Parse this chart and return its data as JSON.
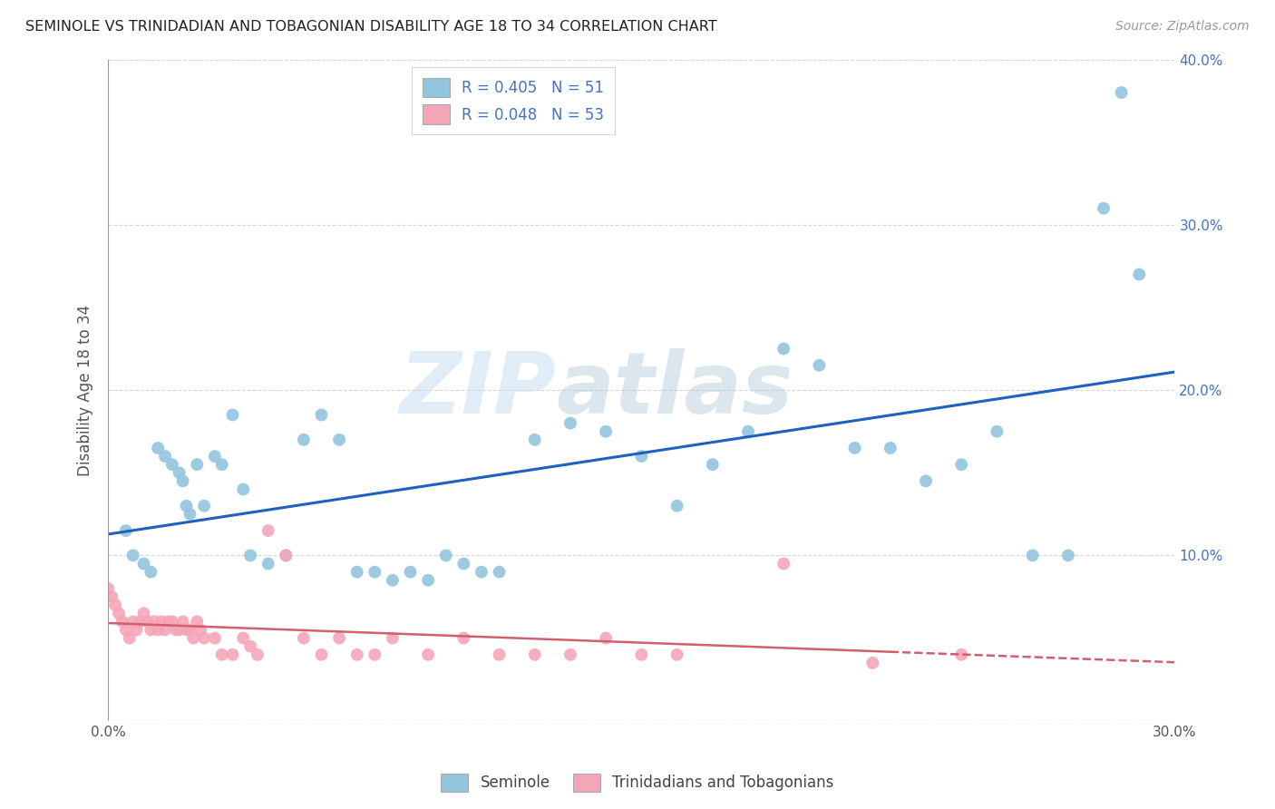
{
  "title": "SEMINOLE VS TRINIDADIAN AND TOBAGONIAN DISABILITY AGE 18 TO 34 CORRELATION CHART",
  "source": "Source: ZipAtlas.com",
  "ylabel": "Disability Age 18 to 34",
  "xmin": 0.0,
  "xmax": 0.3,
  "ymin": 0.0,
  "ymax": 0.4,
  "seminole_R": 0.405,
  "seminole_N": 51,
  "trini_R": 0.048,
  "trini_N": 53,
  "seminole_color": "#92c5de",
  "trini_color": "#f4a6b8",
  "trendline_seminole_color": "#2060bf",
  "trendline_trini_color": "#d06070",
  "watermark_zip": "ZIP",
  "watermark_atlas": "atlas",
  "seminole_x": [
    0.005,
    0.007,
    0.01,
    0.012,
    0.014,
    0.016,
    0.018,
    0.02,
    0.021,
    0.022,
    0.023,
    0.025,
    0.027,
    0.03,
    0.032,
    0.035,
    0.038,
    0.04,
    0.045,
    0.05,
    0.055,
    0.06,
    0.065,
    0.07,
    0.075,
    0.08,
    0.085,
    0.09,
    0.095,
    0.1,
    0.105,
    0.11,
    0.12,
    0.13,
    0.14,
    0.15,
    0.16,
    0.17,
    0.18,
    0.19,
    0.2,
    0.21,
    0.22,
    0.23,
    0.24,
    0.25,
    0.26,
    0.27,
    0.28,
    0.285,
    0.29
  ],
  "seminole_y": [
    0.115,
    0.1,
    0.095,
    0.09,
    0.165,
    0.16,
    0.155,
    0.15,
    0.145,
    0.13,
    0.125,
    0.155,
    0.13,
    0.16,
    0.155,
    0.185,
    0.14,
    0.1,
    0.095,
    0.1,
    0.17,
    0.185,
    0.17,
    0.09,
    0.09,
    0.085,
    0.09,
    0.085,
    0.1,
    0.095,
    0.09,
    0.09,
    0.17,
    0.18,
    0.175,
    0.16,
    0.13,
    0.155,
    0.175,
    0.225,
    0.215,
    0.165,
    0.165,
    0.145,
    0.155,
    0.175,
    0.1,
    0.1,
    0.31,
    0.38,
    0.27
  ],
  "trini_x": [
    0.0,
    0.001,
    0.002,
    0.003,
    0.004,
    0.005,
    0.006,
    0.007,
    0.008,
    0.009,
    0.01,
    0.011,
    0.012,
    0.013,
    0.014,
    0.015,
    0.016,
    0.017,
    0.018,
    0.019,
    0.02,
    0.021,
    0.022,
    0.023,
    0.024,
    0.025,
    0.026,
    0.027,
    0.03,
    0.032,
    0.035,
    0.038,
    0.04,
    0.042,
    0.045,
    0.05,
    0.055,
    0.06,
    0.065,
    0.07,
    0.075,
    0.08,
    0.09,
    0.1,
    0.11,
    0.12,
    0.13,
    0.14,
    0.15,
    0.16,
    0.19,
    0.215,
    0.24
  ],
  "trini_y": [
    0.08,
    0.075,
    0.07,
    0.065,
    0.06,
    0.055,
    0.05,
    0.06,
    0.055,
    0.06,
    0.065,
    0.06,
    0.055,
    0.06,
    0.055,
    0.06,
    0.055,
    0.06,
    0.06,
    0.055,
    0.055,
    0.06,
    0.055,
    0.055,
    0.05,
    0.06,
    0.055,
    0.05,
    0.05,
    0.04,
    0.04,
    0.05,
    0.045,
    0.04,
    0.115,
    0.1,
    0.05,
    0.04,
    0.05,
    0.04,
    0.04,
    0.05,
    0.04,
    0.05,
    0.04,
    0.04,
    0.04,
    0.05,
    0.04,
    0.04,
    0.095,
    0.035,
    0.04
  ]
}
